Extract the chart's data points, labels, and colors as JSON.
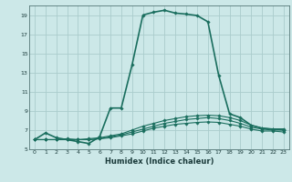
{
  "background_color": "#cce8e8",
  "grid_color": "#aacccc",
  "line_color": "#1a6e5e",
  "xlabel": "Humidex (Indice chaleur)",
  "xlim": [
    -0.5,
    23.5
  ],
  "ylim": [
    5,
    20
  ],
  "xticks": [
    0,
    1,
    2,
    3,
    4,
    5,
    6,
    7,
    8,
    9,
    10,
    11,
    12,
    13,
    14,
    15,
    16,
    17,
    18,
    19,
    20,
    21,
    22,
    23
  ],
  "yticks": [
    5,
    7,
    9,
    11,
    13,
    15,
    17,
    19
  ],
  "series": [
    {
      "x": [
        0,
        1,
        2,
        3,
        4,
        5,
        6,
        7,
        8,
        9,
        10,
        11,
        12,
        13,
        14,
        15,
        16,
        17,
        18,
        19,
        20,
        21,
        22,
        23
      ],
      "y": [
        6.0,
        6.7,
        6.2,
        6.0,
        5.8,
        5.6,
        6.3,
        9.3,
        9.3,
        13.8,
        19.0,
        19.3,
        19.5,
        19.2,
        19.1,
        18.95,
        18.3,
        12.7,
        8.7,
        8.3,
        7.5,
        7.2,
        7.1,
        7.1
      ],
      "linewidth": 1.2
    },
    {
      "x": [
        0,
        1,
        2,
        3,
        4,
        5,
        6,
        7,
        8,
        9,
        10,
        11,
        12,
        13,
        14,
        15,
        16,
        17,
        18,
        19,
        20,
        21,
        22,
        23
      ],
      "y": [
        6.0,
        6.0,
        6.0,
        6.1,
        6.0,
        6.1,
        6.2,
        6.4,
        6.6,
        7.0,
        7.4,
        7.7,
        8.0,
        8.2,
        8.4,
        8.5,
        8.55,
        8.5,
        8.3,
        8.0,
        7.5,
        7.2,
        7.1,
        7.0
      ],
      "linewidth": 0.8
    },
    {
      "x": [
        0,
        1,
        2,
        3,
        4,
        5,
        6,
        7,
        8,
        9,
        10,
        11,
        12,
        13,
        14,
        15,
        16,
        17,
        18,
        19,
        20,
        21,
        22,
        23
      ],
      "y": [
        6.0,
        6.0,
        6.0,
        6.0,
        6.0,
        6.0,
        6.1,
        6.3,
        6.5,
        6.8,
        7.1,
        7.4,
        7.7,
        7.9,
        8.1,
        8.2,
        8.3,
        8.2,
        8.0,
        7.7,
        7.3,
        7.1,
        7.0,
        7.0
      ],
      "linewidth": 0.8
    },
    {
      "x": [
        0,
        1,
        2,
        3,
        4,
        5,
        6,
        7,
        8,
        9,
        10,
        11,
        12,
        13,
        14,
        15,
        16,
        17,
        18,
        19,
        20,
        21,
        22,
        23
      ],
      "y": [
        6.0,
        6.0,
        6.0,
        6.0,
        6.0,
        6.0,
        6.1,
        6.2,
        6.4,
        6.6,
        6.9,
        7.2,
        7.4,
        7.6,
        7.7,
        7.8,
        7.85,
        7.8,
        7.6,
        7.4,
        7.1,
        6.9,
        6.9,
        6.8
      ],
      "linewidth": 0.8
    }
  ]
}
